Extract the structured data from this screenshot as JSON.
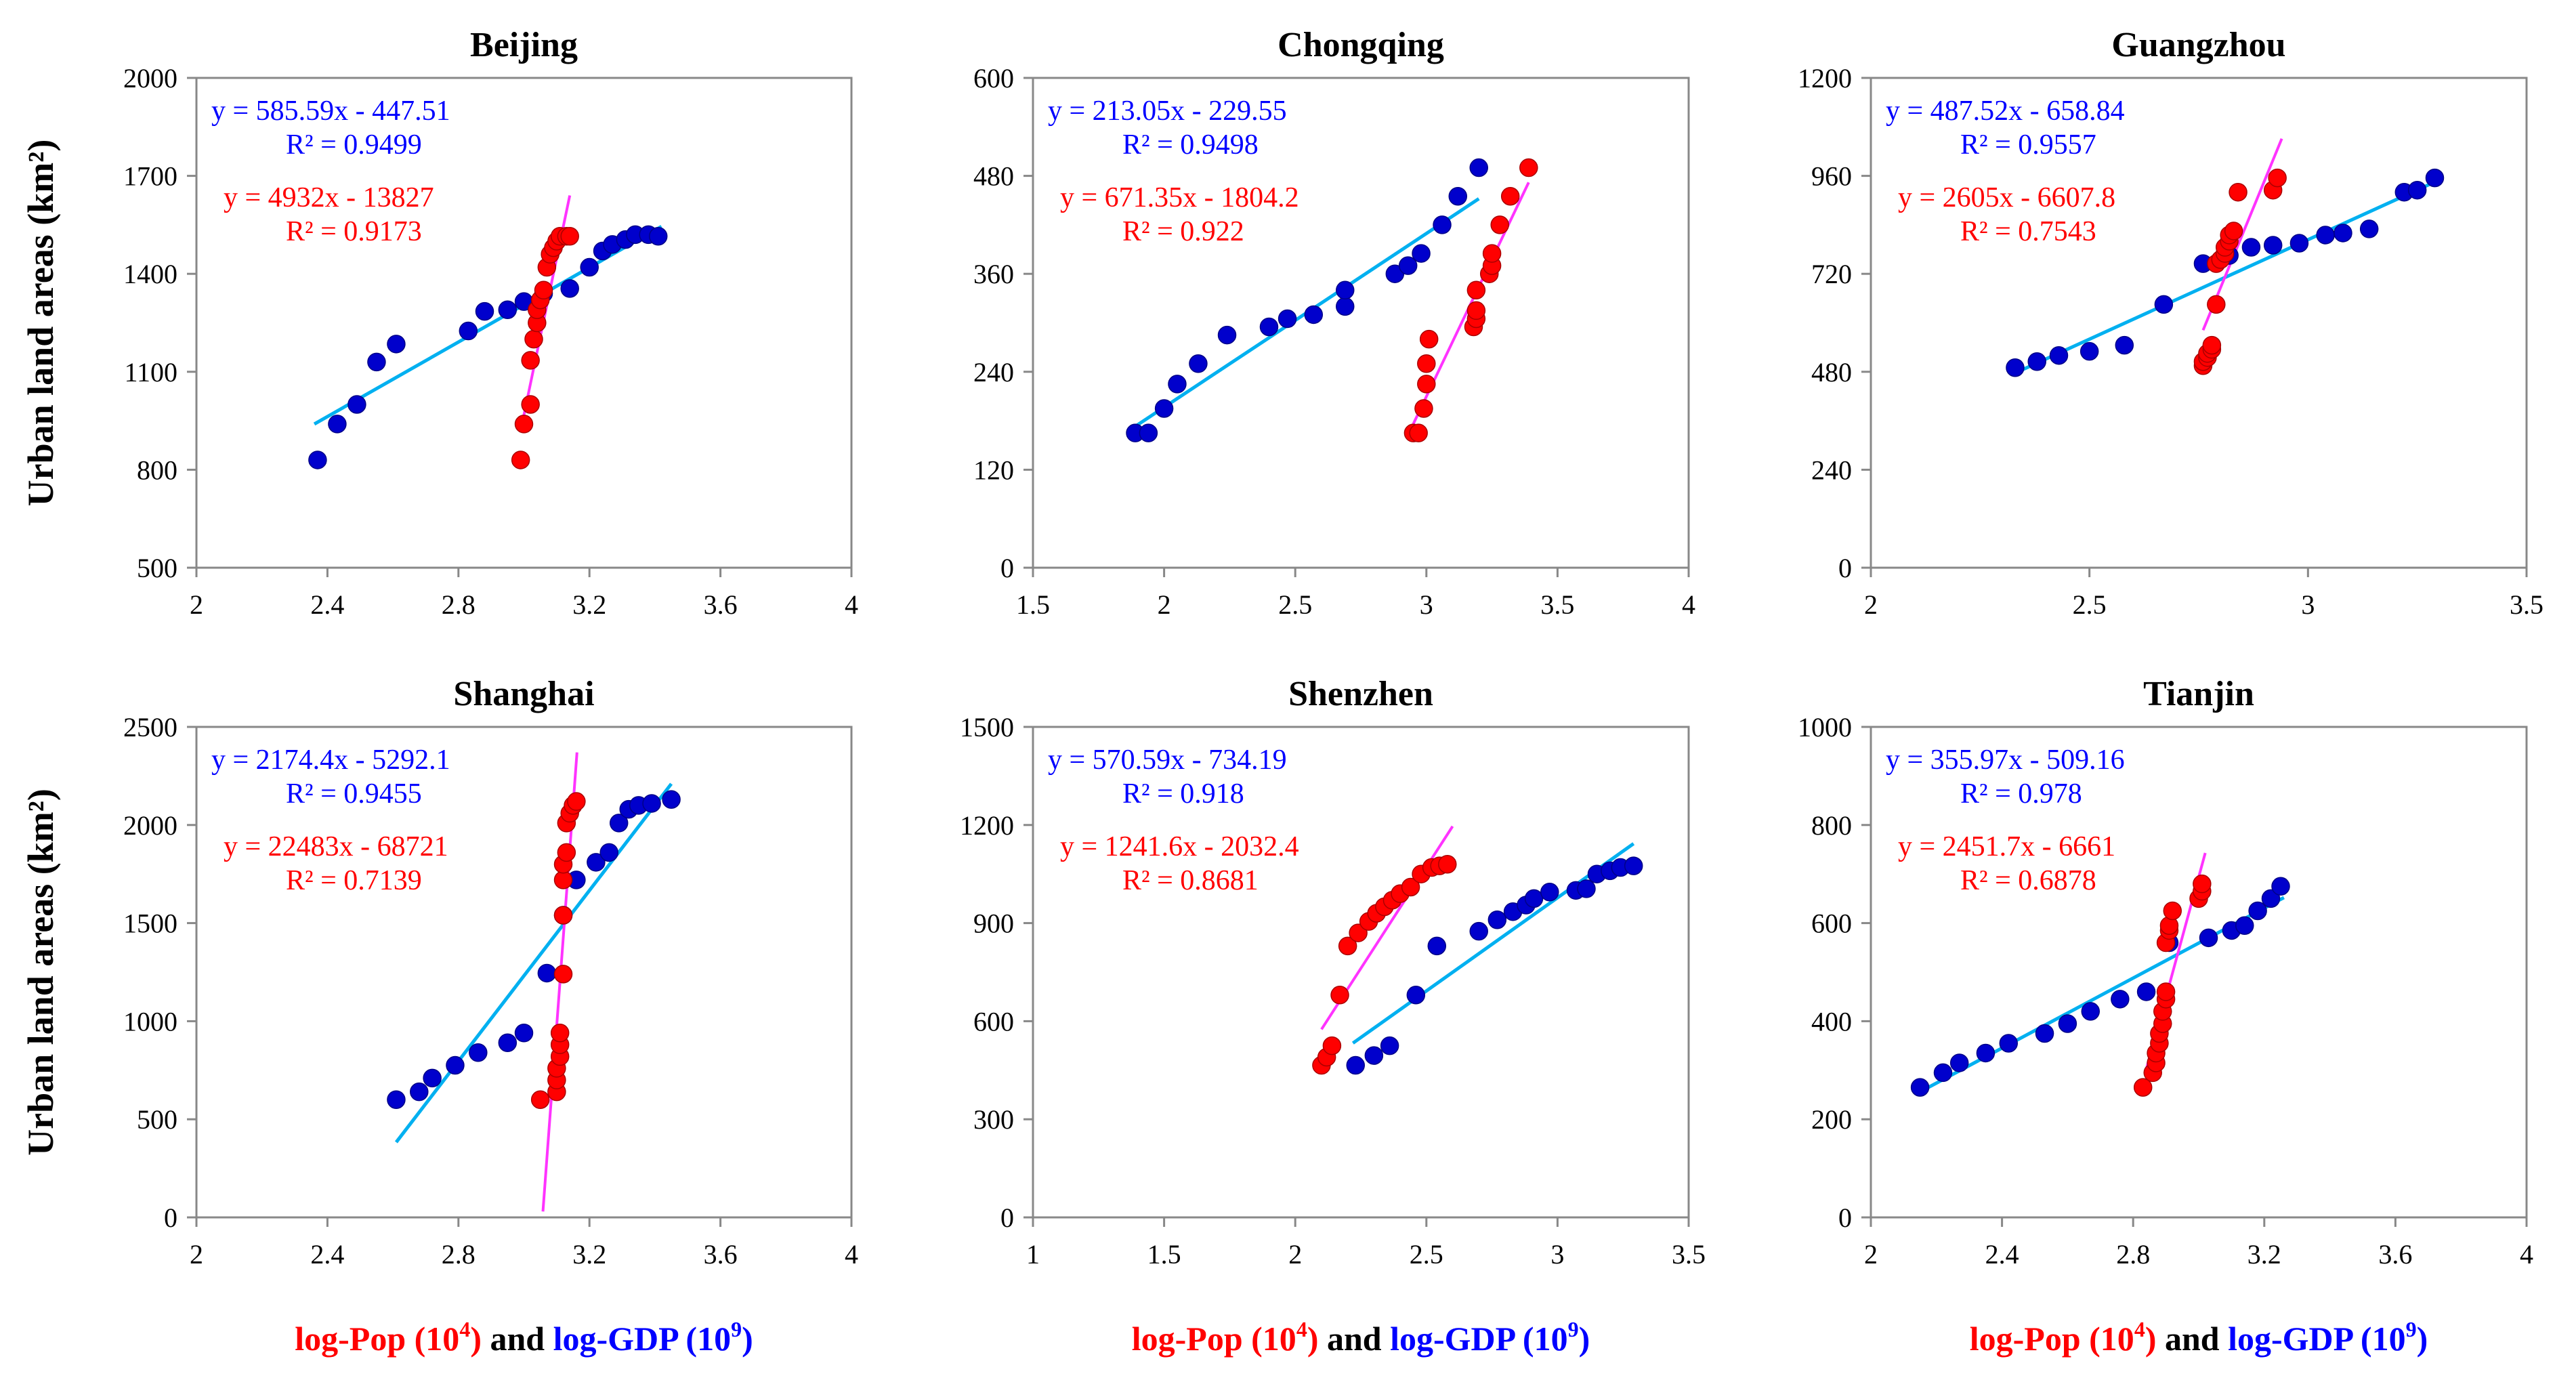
{
  "ylabel": "Urban land areas (km²)",
  "xlabel_parts": [
    {
      "text": "log-Pop (10",
      "color": "#ff0000"
    },
    {
      "text": "4",
      "color": "#ff0000",
      "sup": true
    },
    {
      "text": ")",
      "color": "#ff0000"
    },
    {
      "text": " and ",
      "color": "#000000"
    },
    {
      "text": "log-GDP (10",
      "color": "#0000ff"
    },
    {
      "text": "9",
      "color": "#0000ff",
      "sup": true
    },
    {
      "text": ")",
      "color": "#0000ff"
    }
  ],
  "colors": {
    "pop_marker": "#ff0000",
    "gdp_marker": "#0000cc",
    "pop_line": "#ff33ff",
    "gdp_line": "#00b0f0",
    "gdp_eq": "#0000ff",
    "pop_eq": "#ff0000"
  },
  "chart_data": [
    {
      "type": "scatter",
      "title": "Beijing",
      "xlim": [
        2,
        4
      ],
      "xticks": [
        "2",
        "2.4",
        "2.8",
        "3.2",
        "3.6",
        "4"
      ],
      "xtick_values": [
        2,
        2.4,
        2.8,
        3.2,
        3.6,
        4
      ],
      "ylim": [
        500,
        2000
      ],
      "yticks": [
        "500",
        "800",
        "1100",
        "1400",
        "1700",
        "2000"
      ],
      "ytick_values": [
        500,
        800,
        1100,
        1400,
        1700,
        2000
      ],
      "gdp": {
        "equation": "y = 585.59x - 447.51",
        "r2": "R² = 0.9499",
        "line": [
          [
            2.36,
            940
          ],
          [
            3.42,
            1545
          ]
        ],
        "points": [
          [
            2.37,
            830
          ],
          [
            2.43,
            940
          ],
          [
            2.49,
            1000
          ],
          [
            2.55,
            1130
          ],
          [
            2.61,
            1185
          ],
          [
            2.83,
            1225
          ],
          [
            2.88,
            1285
          ],
          [
            2.95,
            1290
          ],
          [
            3.0,
            1315
          ],
          [
            3.06,
            1340
          ],
          [
            3.14,
            1355
          ],
          [
            3.2,
            1420
          ],
          [
            3.24,
            1470
          ],
          [
            3.27,
            1490
          ],
          [
            3.31,
            1505
          ],
          [
            3.34,
            1520
          ],
          [
            3.38,
            1520
          ],
          [
            3.41,
            1515
          ]
        ]
      },
      "pop": {
        "equation": "y = 4932x - 13827",
        "r2": "R² = 0.9173",
        "line": [
          [
            2.995,
            944
          ],
          [
            3.14,
            1640
          ]
        ],
        "points": [
          [
            2.99,
            830
          ],
          [
            3.0,
            940
          ],
          [
            3.02,
            1000
          ],
          [
            3.02,
            1135
          ],
          [
            3.03,
            1200
          ],
          [
            3.04,
            1250
          ],
          [
            3.04,
            1290
          ],
          [
            3.05,
            1320
          ],
          [
            3.06,
            1350
          ],
          [
            3.07,
            1420
          ],
          [
            3.08,
            1460
          ],
          [
            3.09,
            1480
          ],
          [
            3.1,
            1500
          ],
          [
            3.11,
            1515
          ],
          [
            3.13,
            1515
          ],
          [
            3.14,
            1515
          ]
        ]
      }
    },
    {
      "type": "scatter",
      "title": "Chongqing",
      "xlim": [
        1.5,
        4
      ],
      "xticks": [
        "1.5",
        "2",
        "2.5",
        "3",
        "3.5",
        "4"
      ],
      "xtick_values": [
        1.5,
        2,
        2.5,
        3,
        3.5,
        4
      ],
      "ylim": [
        0,
        600
      ],
      "yticks": [
        "0",
        "120",
        "240",
        "360",
        "480",
        "600"
      ],
      "ytick_values": [
        0,
        120,
        240,
        360,
        480,
        600
      ],
      "gdp": {
        "equation": "y = 213.05x - 229.55",
        "r2": "R² = 0.9498",
        "line": [
          [
            1.88,
            171
          ],
          [
            3.2,
            452
          ]
        ],
        "points": [
          [
            1.89,
            165
          ],
          [
            1.94,
            165
          ],
          [
            2.0,
            195
          ],
          [
            2.05,
            225
          ],
          [
            2.13,
            250
          ],
          [
            2.24,
            285
          ],
          [
            2.4,
            295
          ],
          [
            2.47,
            305
          ],
          [
            2.57,
            310
          ],
          [
            2.69,
            320
          ],
          [
            2.69,
            340
          ],
          [
            2.88,
            360
          ],
          [
            2.93,
            370
          ],
          [
            2.98,
            385
          ],
          [
            3.06,
            420
          ],
          [
            3.12,
            455
          ],
          [
            3.2,
            490
          ]
        ]
      },
      "pop": {
        "equation": "y = 671.35x - 1804.2",
        "r2": "R² = 0.922",
        "line": [
          [
            2.95,
            176
          ],
          [
            3.39,
            472
          ]
        ],
        "points": [
          [
            2.95,
            165
          ],
          [
            2.97,
            165
          ],
          [
            2.99,
            195
          ],
          [
            3.0,
            225
          ],
          [
            3.0,
            250
          ],
          [
            3.01,
            280
          ],
          [
            3.18,
            295
          ],
          [
            3.19,
            305
          ],
          [
            3.19,
            315
          ],
          [
            3.19,
            340
          ],
          [
            3.24,
            360
          ],
          [
            3.25,
            370
          ],
          [
            3.25,
            385
          ],
          [
            3.28,
            420
          ],
          [
            3.32,
            455
          ],
          [
            3.39,
            490
          ]
        ]
      }
    },
    {
      "type": "scatter",
      "title": "Guangzhou",
      "xlim": [
        2,
        3.5
      ],
      "xticks": [
        "2",
        "2.5",
        "3",
        "3.5"
      ],
      "xtick_values": [
        2,
        2.5,
        3,
        3.5
      ],
      "ylim": [
        0,
        1200
      ],
      "yticks": [
        "0",
        "240",
        "480",
        "720",
        "960",
        "1200"
      ],
      "ytick_values": [
        0,
        240,
        480,
        720,
        960,
        1200
      ],
      "gdp": {
        "equation": "y = 487.52x - 658.84",
        "r2": "R² = 0.9557",
        "line": [
          [
            2.33,
            477
          ],
          [
            3.29,
            945
          ]
        ],
        "points": [
          [
            2.33,
            490
          ],
          [
            2.38,
            505
          ],
          [
            2.43,
            520
          ],
          [
            2.5,
            530
          ],
          [
            2.58,
            545
          ],
          [
            2.67,
            645
          ],
          [
            2.76,
            745
          ],
          [
            2.82,
            765
          ],
          [
            2.87,
            785
          ],
          [
            2.92,
            790
          ],
          [
            2.98,
            795
          ],
          [
            3.04,
            815
          ],
          [
            3.08,
            820
          ],
          [
            3.14,
            830
          ],
          [
            3.22,
            920
          ],
          [
            3.25,
            925
          ],
          [
            3.29,
            955
          ]
        ]
      },
      "pop": {
        "equation": "y = 2605x - 6607.8",
        "r2": "R² = 0.7543",
        "line": [
          [
            2.76,
            582
          ],
          [
            2.94,
            1051
          ]
        ],
        "points": [
          [
            2.76,
            495
          ],
          [
            2.76,
            505
          ],
          [
            2.77,
            515
          ],
          [
            2.77,
            525
          ],
          [
            2.78,
            535
          ],
          [
            2.78,
            545
          ],
          [
            2.79,
            645
          ],
          [
            2.79,
            745
          ],
          [
            2.8,
            755
          ],
          [
            2.81,
            770
          ],
          [
            2.81,
            785
          ],
          [
            2.82,
            800
          ],
          [
            2.82,
            815
          ],
          [
            2.83,
            825
          ],
          [
            2.84,
            920
          ],
          [
            2.92,
            925
          ],
          [
            2.93,
            955
          ]
        ]
      }
    },
    {
      "type": "scatter",
      "title": "Shanghai",
      "xlim": [
        2,
        4
      ],
      "xticks": [
        "2",
        "2.4",
        "2.8",
        "3.2",
        "3.6",
        "4"
      ],
      "xtick_values": [
        2,
        2.4,
        2.8,
        3.2,
        3.6,
        4
      ],
      "ylim": [
        0,
        2500
      ],
      "yticks": [
        "0",
        "500",
        "1000",
        "1500",
        "2000",
        "2500"
      ],
      "ytick_values": [
        0,
        500,
        1000,
        1500,
        2000,
        2500
      ],
      "gdp": {
        "equation": "y = 2174.4x - 5292.1",
        "r2": "R² = 0.9455",
        "line": [
          [
            2.61,
            383
          ],
          [
            3.45,
            2210
          ]
        ],
        "points": [
          [
            2.61,
            600
          ],
          [
            2.68,
            640
          ],
          [
            2.72,
            710
          ],
          [
            2.79,
            775
          ],
          [
            2.86,
            840
          ],
          [
            2.95,
            890
          ],
          [
            3.0,
            940
          ],
          [
            3.07,
            1245
          ],
          [
            3.12,
            1540
          ],
          [
            3.16,
            1720
          ],
          [
            3.22,
            1810
          ],
          [
            3.26,
            1860
          ],
          [
            3.29,
            2010
          ],
          [
            3.32,
            2080
          ],
          [
            3.35,
            2100
          ],
          [
            3.39,
            2110
          ],
          [
            3.45,
            2130
          ]
        ]
      },
      "pop": {
        "equation": "y = 22483x - 68721",
        "r2": "R² = 0.7139",
        "line": [
          [
            3.058,
            30
          ],
          [
            3.162,
            2370
          ]
        ],
        "points": [
          [
            3.05,
            600
          ],
          [
            3.1,
            640
          ],
          [
            3.1,
            700
          ],
          [
            3.1,
            760
          ],
          [
            3.11,
            820
          ],
          [
            3.11,
            880
          ],
          [
            3.11,
            940
          ],
          [
            3.12,
            1240
          ],
          [
            3.12,
            1540
          ],
          [
            3.12,
            1720
          ],
          [
            3.12,
            1800
          ],
          [
            3.13,
            1860
          ],
          [
            3.13,
            2010
          ],
          [
            3.14,
            2060
          ],
          [
            3.15,
            2100
          ],
          [
            3.16,
            2120
          ]
        ]
      }
    },
    {
      "type": "scatter",
      "title": "Shenzhen",
      "xlim": [
        1,
        3.5
      ],
      "xticks": [
        "1",
        "1.5",
        "2",
        "2.5",
        "3",
        "3.5"
      ],
      "xtick_values": [
        1,
        1.5,
        2,
        2.5,
        3,
        3.5
      ],
      "ylim": [
        0,
        1500
      ],
      "yticks": [
        "0",
        "300",
        "600",
        "900",
        "1200",
        "1500"
      ],
      "ytick_values": [
        0,
        300,
        600,
        900,
        1200,
        1500
      ],
      "gdp": {
        "equation": "y = 570.59x - 734.19",
        "r2": "R² = 0.918",
        "line": [
          [
            2.22,
            533
          ],
          [
            3.29,
            1143
          ]
        ],
        "points": [
          [
            2.23,
            465
          ],
          [
            2.3,
            495
          ],
          [
            2.36,
            525
          ],
          [
            2.46,
            680
          ],
          [
            2.54,
            830
          ],
          [
            2.7,
            875
          ],
          [
            2.77,
            910
          ],
          [
            2.83,
            935
          ],
          [
            2.88,
            955
          ],
          [
            2.91,
            975
          ],
          [
            2.97,
            995
          ],
          [
            3.07,
            1000
          ],
          [
            3.11,
            1005
          ],
          [
            3.15,
            1050
          ],
          [
            3.2,
            1060
          ],
          [
            3.24,
            1070
          ],
          [
            3.29,
            1075
          ]
        ]
      },
      "pop": {
        "equation": "y = 1241.6x - 2032.4",
        "r2": "R² = 0.8681",
        "line": [
          [
            2.1,
            575
          ],
          [
            2.6,
            1196
          ]
        ],
        "points": [
          [
            2.1,
            465
          ],
          [
            2.12,
            490
          ],
          [
            2.14,
            525
          ],
          [
            2.17,
            680
          ],
          [
            2.2,
            830
          ],
          [
            2.24,
            870
          ],
          [
            2.28,
            905
          ],
          [
            2.31,
            930
          ],
          [
            2.34,
            950
          ],
          [
            2.37,
            970
          ],
          [
            2.4,
            990
          ],
          [
            2.44,
            1010
          ],
          [
            2.48,
            1050
          ],
          [
            2.52,
            1070
          ],
          [
            2.55,
            1075
          ],
          [
            2.58,
            1080
          ]
        ]
      }
    },
    {
      "type": "scatter",
      "title": "Tianjin",
      "xlim": [
        2,
        4
      ],
      "xticks": [
        "2",
        "2.4",
        "2.8",
        "3.2",
        "3.6",
        "4"
      ],
      "xtick_values": [
        2,
        2.4,
        2.8,
        3.2,
        3.6,
        4
      ],
      "ylim": [
        0,
        1000
      ],
      "yticks": [
        "0",
        "200",
        "400",
        "600",
        "800",
        "1000"
      ],
      "ytick_values": [
        0,
        200,
        400,
        600,
        800,
        1000
      ],
      "gdp": {
        "equation": "y = 355.97x - 509.16",
        "r2": "R² = 0.978",
        "line": [
          [
            2.15,
            256
          ],
          [
            3.26,
            652
          ]
        ],
        "points": [
          [
            2.15,
            265
          ],
          [
            2.22,
            295
          ],
          [
            2.27,
            315
          ],
          [
            2.35,
            335
          ],
          [
            2.42,
            355
          ],
          [
            2.53,
            375
          ],
          [
            2.6,
            395
          ],
          [
            2.67,
            420
          ],
          [
            2.76,
            445
          ],
          [
            2.84,
            460
          ],
          [
            2.91,
            560
          ],
          [
            3.03,
            570
          ],
          [
            3.1,
            585
          ],
          [
            3.14,
            595
          ],
          [
            3.18,
            625
          ],
          [
            3.22,
            650
          ],
          [
            3.25,
            675
          ]
        ]
      },
      "pop": {
        "equation": "y = 2451.7x - 6661",
        "r2": "R² = 0.6878",
        "line": [
          [
            2.84,
            302
          ],
          [
            3.02,
            743
          ]
        ],
        "points": [
          [
            2.83,
            265
          ],
          [
            2.86,
            295
          ],
          [
            2.87,
            315
          ],
          [
            2.87,
            335
          ],
          [
            2.88,
            355
          ],
          [
            2.88,
            375
          ],
          [
            2.89,
            395
          ],
          [
            2.89,
            420
          ],
          [
            2.9,
            445
          ],
          [
            2.9,
            460
          ],
          [
            2.9,
            560
          ],
          [
            2.91,
            585
          ],
          [
            2.91,
            595
          ],
          [
            2.92,
            625
          ],
          [
            3.0,
            650
          ],
          [
            3.01,
            665
          ],
          [
            3.01,
            680
          ]
        ]
      }
    }
  ]
}
